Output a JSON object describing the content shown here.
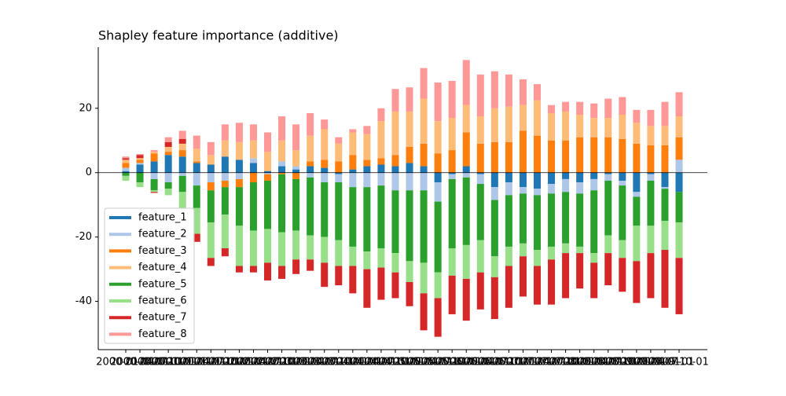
{
  "chart_data": {
    "type": "bar",
    "stacked": true,
    "title": "Shapley feature importance (additive)",
    "categories": [
      "2000-01-01",
      "2000-04-01",
      "2000-07-01",
      "2000-10-01",
      "2001-01-01",
      "2001-04-01",
      "2001-07-01",
      "2001-10-01",
      "2002-01-01",
      "2002-04-01",
      "2002-07-01",
      "2002-10-01",
      "2003-01-01",
      "2003-04-01",
      "2003-07-01",
      "2003-10-01",
      "2004-01-01",
      "2004-04-01",
      "2004-07-01",
      "2004-10-01",
      "2005-01-01",
      "2005-04-01",
      "2005-07-01",
      "2005-10-01",
      "2006-01-01",
      "2006-04-01",
      "2006-07-01",
      "2006-10-01",
      "2007-01-01",
      "2007-04-01",
      "2007-07-01",
      "2007-10-01",
      "2008-01-01",
      "2008-04-01",
      "2008-07-01",
      "2008-10-01",
      "2009-01-01",
      "2009-04-01",
      "2009-07-01",
      "2009-10-01"
    ],
    "series": [
      {
        "name": "feature_1",
        "color": "#1f77b4",
        "values": [
          0.5,
          2.5,
          3.5,
          5.5,
          5,
          3,
          2.5,
          5,
          4,
          3,
          0.5,
          2,
          1,
          2,
          1.5,
          -0.5,
          1,
          2,
          2.5,
          2,
          3,
          2,
          -3,
          -0.5,
          2,
          -0.5,
          -4.5,
          -3,
          -4.5,
          -5,
          -3.5,
          -2,
          -3,
          -2,
          -0.5,
          -2.5,
          -6,
          -0.5,
          -4.5,
          -6
        ]
      },
      {
        "name": "feature_2",
        "color": "#aec7e8",
        "values": [
          1,
          0.5,
          -2,
          -3,
          -1,
          -4,
          -3,
          -2.5,
          -2,
          1.5,
          -0.5,
          1.5,
          1,
          -1.5,
          -3,
          -2.5,
          -4.5,
          -4.5,
          -4,
          -5.5,
          -5.5,
          -5.5,
          -6,
          -1.5,
          -1.5,
          -3,
          -4,
          -4,
          -2,
          -2,
          -3,
          -4,
          -3.5,
          -3.5,
          -2,
          -1.5,
          -1.5,
          -2,
          -0.5,
          4
        ]
      },
      {
        "name": "feature_3",
        "color": "#ff7f0e",
        "values": [
          1.5,
          1,
          2.5,
          1,
          2,
          0.5,
          -2.5,
          -2,
          -2.5,
          -3,
          -2,
          -0.5,
          -2,
          1.5,
          2.5,
          3.5,
          4.5,
          2,
          2,
          3.5,
          5,
          7,
          6,
          7,
          10.5,
          9,
          9.5,
          9.5,
          13,
          11.5,
          10,
          10,
          11,
          11,
          11,
          10.5,
          9,
          8.5,
          8.5,
          7
        ]
      },
      {
        "name": "feature_4",
        "color": "#ffbb78",
        "values": [
          1,
          0.5,
          0.5,
          1.5,
          2,
          4,
          3,
          5,
          5.5,
          5.5,
          6,
          6.5,
          5,
          8,
          9.5,
          5.5,
          7,
          8,
          11.5,
          13.5,
          11,
          14,
          10,
          10,
          8.5,
          8.5,
          10.5,
          11,
          8,
          11,
          8.5,
          9,
          7,
          6,
          6,
          7.5,
          6.5,
          6,
          6,
          6.5
        ]
      },
      {
        "name": "feature_5",
        "color": "#2ca02c",
        "values": [
          -1,
          -3,
          -3.5,
          -2,
          -5,
          -7,
          -10,
          -8.5,
          -12,
          -15,
          -15,
          -18,
          -16,
          -18,
          -17,
          -18,
          -18.5,
          -20,
          -19.5,
          -19.5,
          -22,
          -22.5,
          -22,
          -21.5,
          -21,
          -17.5,
          -17.5,
          -16,
          -15.5,
          -17,
          -16.5,
          -16,
          -16.5,
          -19.5,
          -17,
          -17,
          -9,
          -14,
          -10,
          -9.5
        ]
      },
      {
        "name": "feature_6",
        "color": "#98df8a",
        "values": [
          -1.5,
          -1.5,
          -0.5,
          -2,
          -5,
          -8,
          -11,
          -10.5,
          -12.5,
          -11,
          -10.5,
          -10.5,
          -9,
          -7.5,
          -8,
          -8,
          -6,
          -5.5,
          -6,
          -6,
          -6.5,
          -9.5,
          -8,
          -8.5,
          -10.5,
          -10,
          -6.5,
          -6,
          -4,
          -5,
          -4,
          -3,
          -2,
          -3,
          -5.5,
          -5.5,
          -11,
          -8.5,
          -9,
          -11
        ]
      },
      {
        "name": "feature_7",
        "color": "#d62728",
        "values": [
          0.5,
          1,
          -0.3,
          1.5,
          1.5,
          -2.5,
          -2.5,
          -2.5,
          -2,
          -2,
          -5.5,
          -4,
          -4.5,
          -3.5,
          -7.5,
          -6,
          -8.5,
          -12,
          -10,
          -8,
          -7.5,
          -11.5,
          -12,
          -12,
          -13,
          -11.5,
          -13,
          -13,
          -12.5,
          -12,
          -14,
          -14,
          -11,
          -11,
          -10,
          -10.5,
          -13,
          -14,
          -18,
          -17.5
        ]
      },
      {
        "name": "feature_8",
        "color": "#ff9896",
        "values": [
          0.5,
          0.3,
          0.5,
          1.5,
          2.5,
          4,
          4,
          5,
          6,
          5,
          6,
          7.5,
          8,
          7,
          3,
          2,
          1,
          2.5,
          4,
          7,
          7.5,
          9.5,
          12,
          11.5,
          14,
          13,
          11.5,
          10,
          8,
          5,
          2.5,
          3,
          4,
          4.5,
          6,
          5.5,
          4,
          5,
          7.5,
          7.5
        ]
      }
    ],
    "ylim": [
      -55,
      39
    ],
    "yticks": [
      -40,
      -20,
      0,
      20
    ],
    "legend": "lower left"
  }
}
